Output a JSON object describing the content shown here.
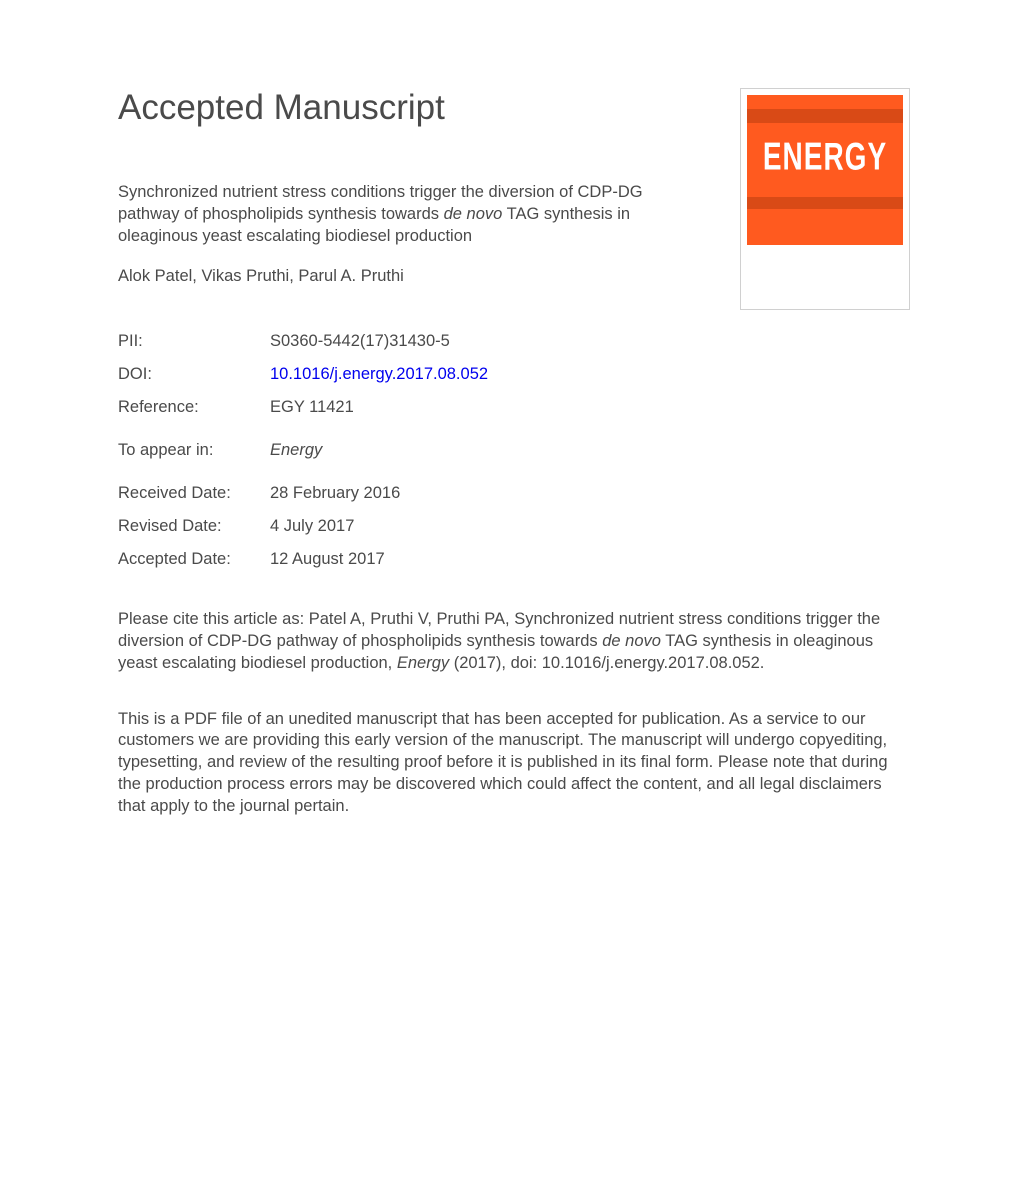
{
  "header": {
    "heading": "Accepted Manuscript"
  },
  "journal_cover": {
    "title_text": "ENERGY",
    "background_color": "#ff5a1f",
    "stripe_color": "#d94a16",
    "title_color": "#ffffff"
  },
  "article": {
    "title_part1": "Synchronized nutrient stress conditions trigger the diversion of CDP-DG pathway of phospholipids synthesis towards ",
    "title_italic": "de novo",
    "title_part2": " TAG synthesis in oleaginous yeast escalating biodiesel production",
    "authors": "Alok Patel, Vikas Pruthi, Parul A. Pruthi"
  },
  "meta": {
    "pii_label": "PII:",
    "pii_value": "S0360-5442(17)31430-5",
    "doi_label": "DOI:",
    "doi_value": "10.1016/j.energy.2017.08.052",
    "reference_label": "Reference:",
    "reference_value": "EGY 11421",
    "to_appear_label": "To appear in:",
    "to_appear_value": "Energy",
    "received_label": "Received Date:",
    "received_value": "28 February 2016",
    "revised_label": "Revised Date:",
    "revised_value": "4 July 2017",
    "accepted_label": "Accepted Date:",
    "accepted_value": "12 August 2017"
  },
  "citation": {
    "part1": "Please cite this article as: Patel A, Pruthi V, Pruthi PA, Synchronized nutrient stress conditions trigger the diversion of CDP-DG pathway of phospholipids synthesis towards ",
    "italic1": "de novo",
    "part2": " TAG synthesis in oleaginous yeast escalating biodiesel production, ",
    "italic2": "Energy",
    "part3": " (2017), doi: 10.1016/j.energy.2017.08.052."
  },
  "disclaimer": {
    "text": "This is a PDF file of an unedited manuscript that has been accepted for publication. As a service to our customers we are providing this early version of the manuscript. The manuscript will undergo copyediting, typesetting, and review of the resulting proof before it is published in its final form. Please note that during the production process errors may be discovered which could affect the content, and all legal disclaimers that apply to the journal pertain."
  },
  "colors": {
    "text": "#4a4a4a",
    "link": "#0000ee",
    "background": "#ffffff"
  },
  "typography": {
    "heading_fontsize": 35,
    "body_fontsize": 16.5,
    "font_family": "Arial, Helvetica, sans-serif"
  }
}
